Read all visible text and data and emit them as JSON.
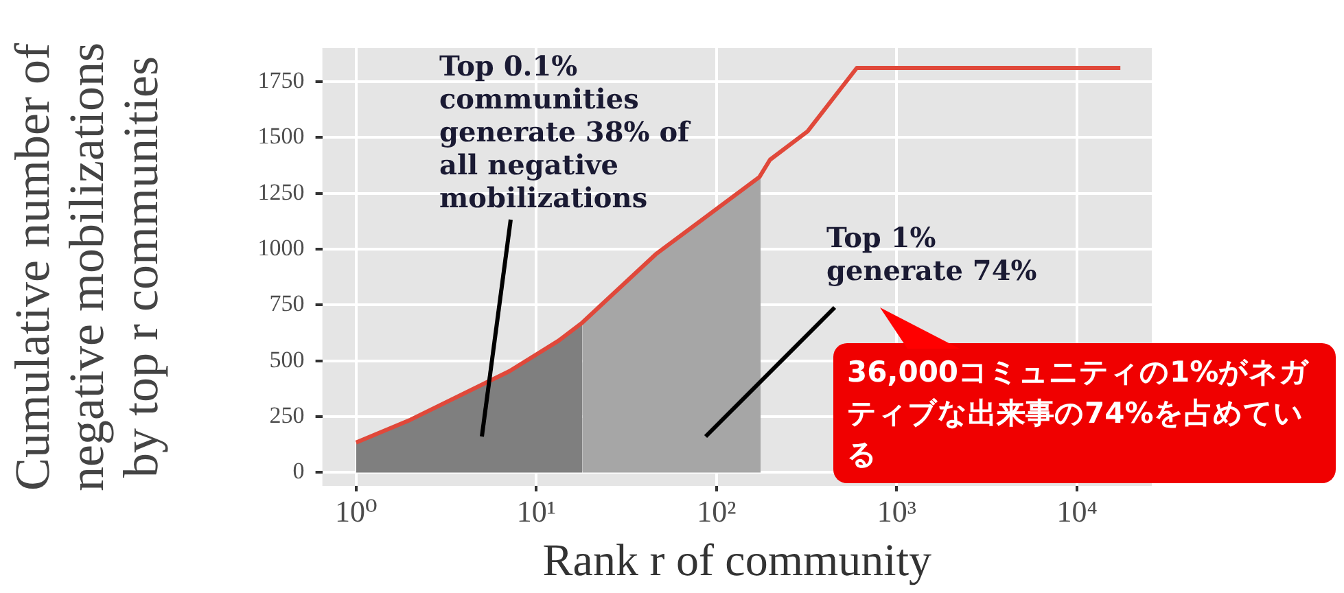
{
  "chart_data": {
    "type": "line",
    "xlabel": "Rank r of community",
    "ylabel": "Cumulative number of\nnegative mobilizations\nby top r communities",
    "log": "x",
    "grid": true,
    "legend": false,
    "xlim": [
      0.65,
      26000
    ],
    "ylim": [
      -60,
      1900
    ],
    "xticks": [
      {
        "value": 1,
        "label": "10⁰"
      },
      {
        "value": 10,
        "label": "10¹"
      },
      {
        "value": 100,
        "label": "10²"
      },
      {
        "value": 1000,
        "label": "10³"
      },
      {
        "value": 10000,
        "label": "10⁴"
      }
    ],
    "yticks": [
      0,
      250,
      500,
      750,
      1000,
      1250,
      1500,
      1750
    ],
    "series": [
      {
        "type": "area",
        "color": "#7f7f7f",
        "x": [
          1,
          2,
          7.1,
          13.3,
          18
        ],
        "values": [
          134,
          236,
          454,
          590,
          671
        ]
      },
      {
        "type": "area",
        "color": "#a6a6a6",
        "x": [
          18,
          46,
          173,
          176
        ],
        "values": [
          671,
          977,
          1323,
          1330
        ]
      },
      {
        "type": "line",
        "color": "#e0483a",
        "x": [
          1,
          2,
          7.1,
          13.3,
          18,
          46,
          173,
          198,
          320,
          600,
          17400
        ],
        "values": [
          134,
          236,
          454,
          590,
          671,
          977,
          1323,
          1400,
          1527,
          1811,
          1811
        ]
      }
    ],
    "annotations": [
      "Top 0.1%\ncommunities\ngenerate 38% of\nall negative\nmobilizations",
      "Top 1%\ngenerate 74%",
      "36,000コミュニティの1%がネガティブな出来事の74%を占めている"
    ]
  }
}
